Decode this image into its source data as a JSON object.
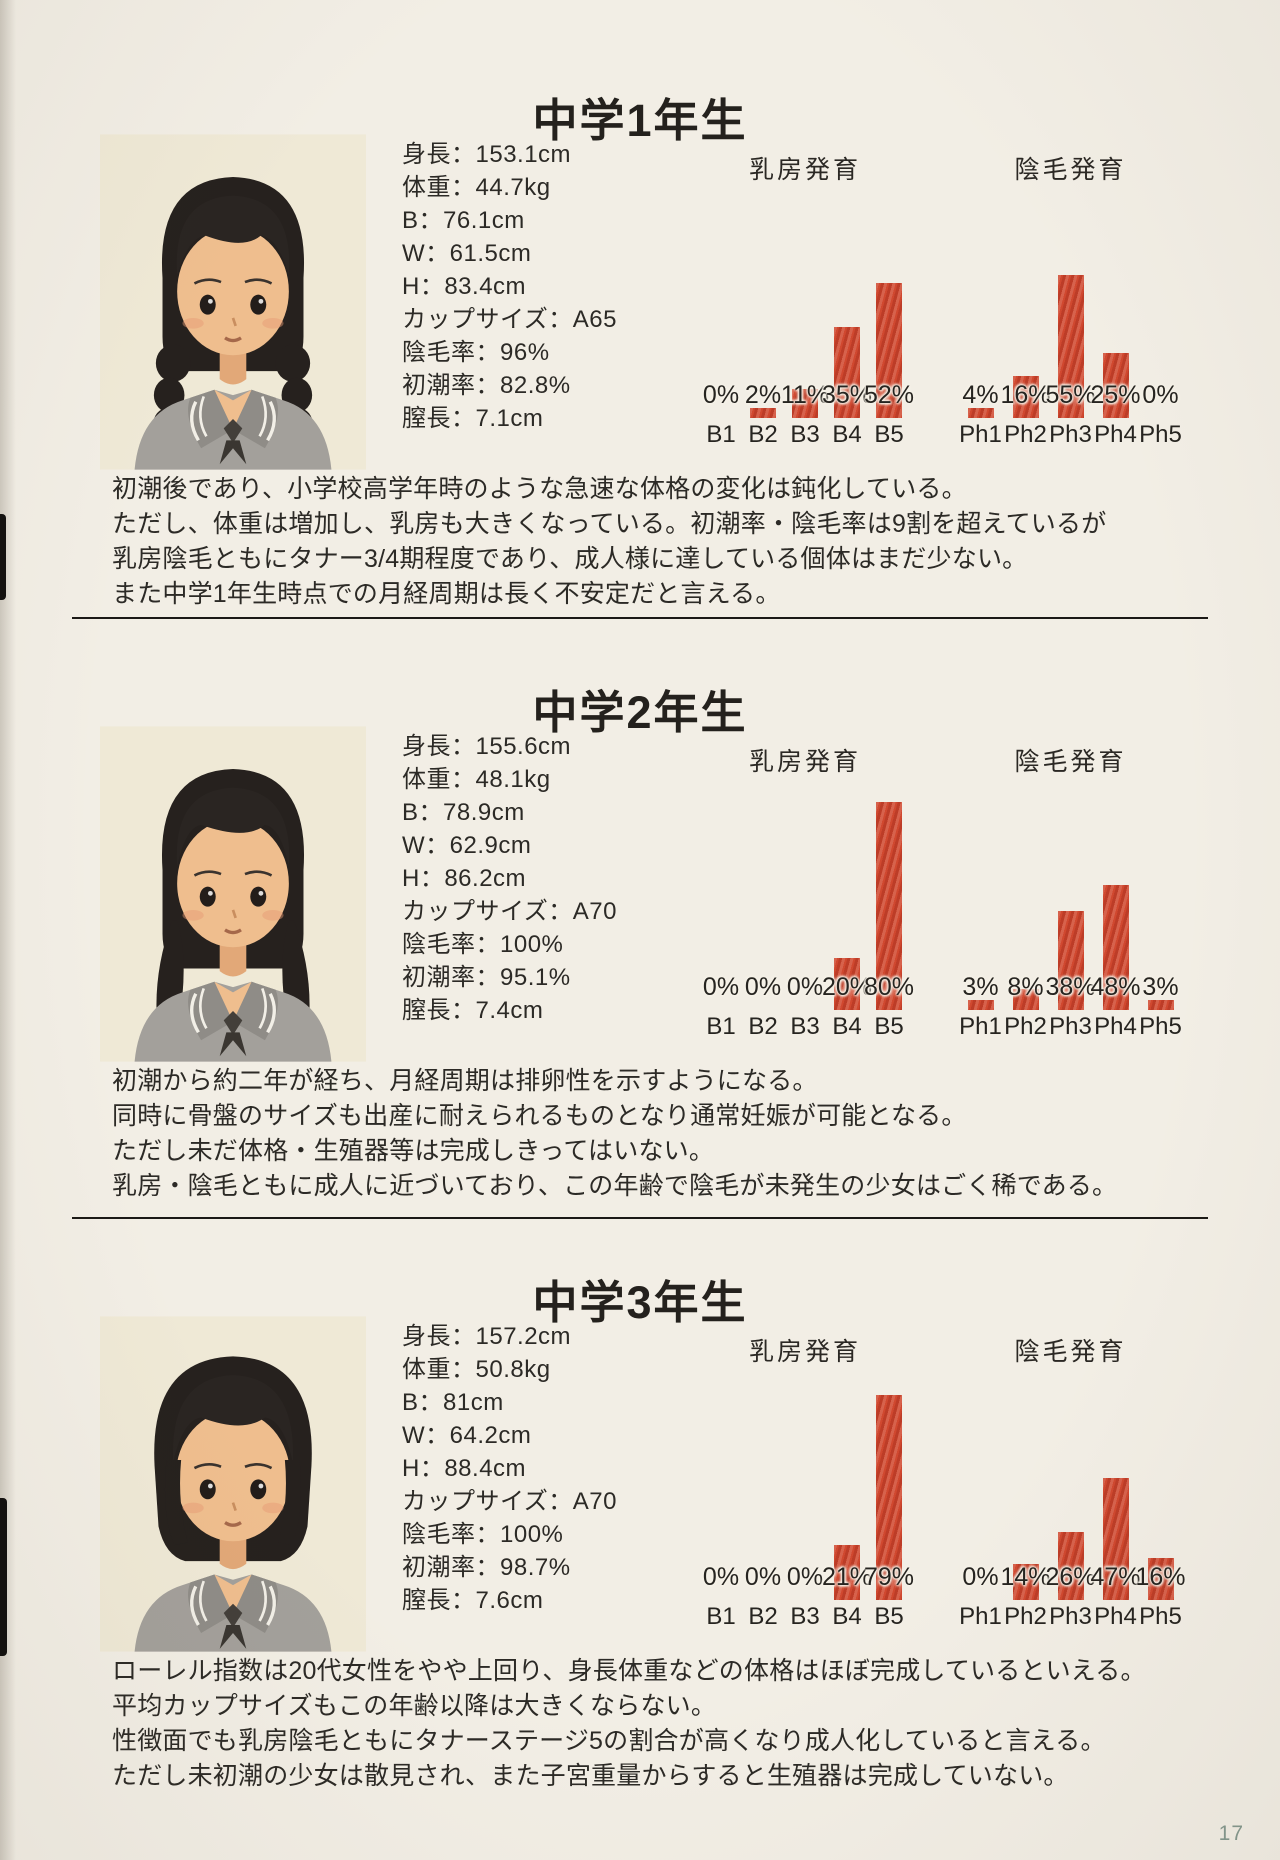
{
  "document": {
    "page_number": "17",
    "sections": [
      {
        "title": "中学1年生",
        "stats": [
          "身長：153.1cm",
          "体重：44.7kg",
          "B：76.1cm",
          "W：61.5cm",
          "H：83.4cm",
          "カップサイズ：A65",
          "陰毛率：96%",
          "初潮率：82.8%",
          "膣長：7.1cm"
        ],
        "paragraph": [
          "初潮後であり、小学校高学年時のような急速な体格の変化は鈍化している。",
          "ただし、体重は増加し、乳房も大きくなっている。初潮率・陰毛率は9割を超えているが",
          "乳房陰毛ともにタナー3/4期程度であり、成人様に達している個体はまだ少ない。",
          "また中学1年生時点での月経周期は長く不安定だと言える。"
        ]
      },
      {
        "title": "中学2年生",
        "stats": [
          "身長：155.6cm",
          "体重：48.1kg",
          "B：78.9cm",
          "W：62.9cm",
          "H：86.2cm",
          "カップサイズ：A70",
          "陰毛率：100%",
          "初潮率：95.1%",
          "膣長：7.4cm"
        ],
        "paragraph": [
          "初潮から約二年が経ち、月経周期は排卵性を示すようになる。",
          "同時に骨盤のサイズも出産に耐えられるものとなり通常妊娠が可能となる。",
          "ただし未だ体格・生殖器等は完成しきってはいない。",
          "乳房・陰毛ともに成人に近づいており、この年齢で陰毛が未発生の少女はごく稀である。"
        ]
      },
      {
        "title": "中学3年生",
        "stats": [
          "身長：157.2cm",
          "体重：50.8kg",
          "B：81cm",
          "W：64.2cm",
          "H：88.4cm",
          "カップサイズ：A70",
          "陰毛率：100%",
          "初潮率：98.7%",
          "膣長：7.6cm"
        ],
        "paragraph": [
          "ローレル指数は20代女性をやや上回り、身長体重などの体格はほぼ完成しているといえる。",
          "平均カップサイズもこの年齢以降は大きくならない。",
          "性徴面でも乳房陰毛ともにタナーステージ5の割合が高くなり成人化していると言える。",
          "ただし未初潮の少女は散見され、また子宮重量からすると生殖器は完成していない。"
        ]
      }
    ]
  },
  "chart_data": [
    {
      "section": "中学1年生",
      "type": "bar",
      "title": "乳房発育",
      "categories": [
        "B1",
        "B2",
        "B3",
        "B4",
        "B5"
      ],
      "values": [
        0,
        2,
        11,
        35,
        52
      ],
      "unit": "%",
      "bar_color": "#d0482f"
    },
    {
      "section": "中学1年生",
      "type": "bar",
      "title": "陰毛発育",
      "categories": [
        "Ph1",
        "Ph2",
        "Ph3",
        "Ph4",
        "Ph5"
      ],
      "values": [
        4,
        16,
        55,
        25,
        0
      ],
      "unit": "%",
      "bar_color": "#d0482f"
    },
    {
      "section": "中学2年生",
      "type": "bar",
      "title": "乳房発育",
      "categories": [
        "B1",
        "B2",
        "B3",
        "B4",
        "B5"
      ],
      "values": [
        0,
        0,
        0,
        20,
        80
      ],
      "unit": "%",
      "bar_color": "#d0482f"
    },
    {
      "section": "中学2年生",
      "type": "bar",
      "title": "陰毛発育",
      "categories": [
        "Ph1",
        "Ph2",
        "Ph3",
        "Ph4",
        "Ph5"
      ],
      "values": [
        3,
        8,
        38,
        48,
        3
      ],
      "unit": "%",
      "bar_color": "#d0482f"
    },
    {
      "section": "中学3年生",
      "type": "bar",
      "title": "乳房発育",
      "categories": [
        "B1",
        "B2",
        "B3",
        "B4",
        "B5"
      ],
      "values": [
        0,
        0,
        0,
        21,
        79
      ],
      "unit": "%",
      "bar_color": "#d0482f"
    },
    {
      "section": "中学3年生",
      "type": "bar",
      "title": "陰毛発育",
      "categories": [
        "Ph1",
        "Ph2",
        "Ph3",
        "Ph4",
        "Ph5"
      ],
      "values": [
        0,
        14,
        26,
        47,
        16
      ],
      "unit": "%",
      "bar_color": "#d0482f"
    }
  ],
  "colors": {
    "paper": "#f2eee5",
    "text": "#2c2a26",
    "bar": "#d0482f",
    "page_number": "#84988e"
  }
}
